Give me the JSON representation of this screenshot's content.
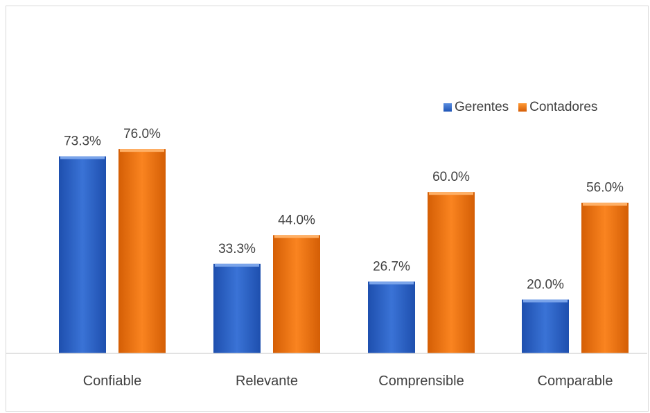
{
  "chart_data": {
    "type": "bar",
    "categories": [
      "Confiable",
      "Relevante",
      "Comprensible",
      "Comparable"
    ],
    "series": [
      {
        "name": "Gerentes",
        "values": [
          73.3,
          33.3,
          26.7,
          20.0
        ],
        "labels": [
          "73.3%",
          "33.3%",
          "26.7%",
          "20.0%"
        ],
        "color": "#2a63c8"
      },
      {
        "name": "Contadores",
        "values": [
          76.0,
          44.0,
          60.0,
          56.0
        ],
        "labels": [
          "76.0%",
          "44.0%",
          "60.0%",
          "56.0%"
        ],
        "color": "#f07812"
      }
    ],
    "title": "",
    "xlabel": "",
    "ylabel": "",
    "ylim": [
      0,
      100
    ],
    "grid": false,
    "legend_position": "top-right"
  }
}
